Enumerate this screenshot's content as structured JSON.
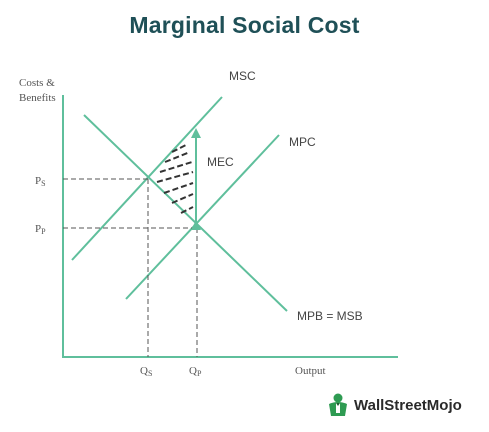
{
  "title": "Marginal Social Cost",
  "axes": {
    "y_label_line1": "Costs &",
    "y_label_line2": "Benefits",
    "x_label": "Output"
  },
  "curves": {
    "msc": "MSC",
    "mpc": "MPC",
    "mpb_msb": "MPB = MSB",
    "mec": "MEC"
  },
  "price_labels": {
    "ps_main": "P",
    "ps_sub": "S",
    "pp_main": "P",
    "pp_sub": "P"
  },
  "quantity_labels": {
    "qs_main": "Q",
    "qs_sub": "S",
    "qp_main": "Q",
    "qp_sub": "P"
  },
  "brand": {
    "logo_text": "WallStreetMojo"
  },
  "colors": {
    "line": "#5fbf9c",
    "title": "#1f5057",
    "logo_green": "#2e9b52"
  }
}
